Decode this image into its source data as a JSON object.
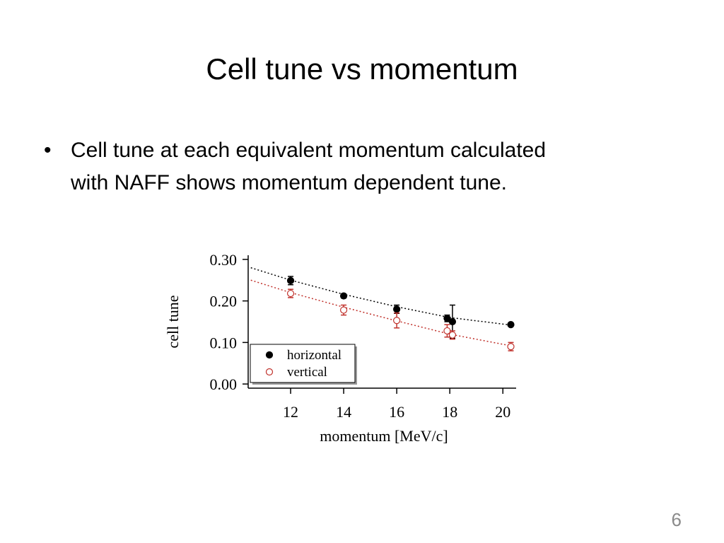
{
  "slide": {
    "title": "Cell tune vs momentum",
    "bullet": [
      "Cell tune at each equivalent momentum calculated",
      "with NAFF shows momentum dependent tune."
    ],
    "page_number": "6"
  },
  "chart_data": {
    "type": "scatter",
    "xlabel": "momentum [MeV/c]",
    "ylabel": "cell tune",
    "xlim": [
      10.4,
      20.5
    ],
    "ylim": [
      -0.01,
      0.31
    ],
    "xticks": [
      12,
      14,
      16,
      18,
      20
    ],
    "yticks": [
      {
        "value": 0,
        "label": "0.00"
      },
      {
        "value": 0.1,
        "label": "0.10"
      },
      {
        "value": 0.2,
        "label": "0.20"
      },
      {
        "value": 0.3,
        "label": "0.30"
      }
    ],
    "legend": "lower left",
    "series": [
      {
        "name": "horizontal",
        "color": "#000000",
        "filled": true,
        "x": [
          12,
          14,
          16,
          17.9,
          18.1,
          20.3
        ],
        "values": [
          0.249,
          0.212,
          0.18,
          0.158,
          0.15,
          0.143
        ],
        "errors": [
          0.01,
          0.005,
          0.01,
          0.008,
          0.04,
          0.003
        ]
      },
      {
        "name": "vertical",
        "color": "#c0312b",
        "filled": false,
        "x": [
          12,
          14,
          16,
          17.9,
          18.1,
          20.3
        ],
        "values": [
          0.218,
          0.178,
          0.153,
          0.128,
          0.118,
          0.09
        ],
        "errors": [
          0.01,
          0.012,
          0.018,
          0.015,
          0.01,
          0.01
        ]
      }
    ],
    "fits": [
      {
        "color": "#000000",
        "x": [
          10.5,
          12,
          14,
          16,
          18,
          20.3
        ],
        "values": [
          0.28,
          0.25,
          0.216,
          0.186,
          0.16,
          0.142
        ]
      },
      {
        "color": "#c0312b",
        "x": [
          10.5,
          12,
          14,
          16,
          18,
          20.3
        ],
        "values": [
          0.25,
          0.22,
          0.185,
          0.152,
          0.12,
          0.092
        ]
      }
    ]
  }
}
